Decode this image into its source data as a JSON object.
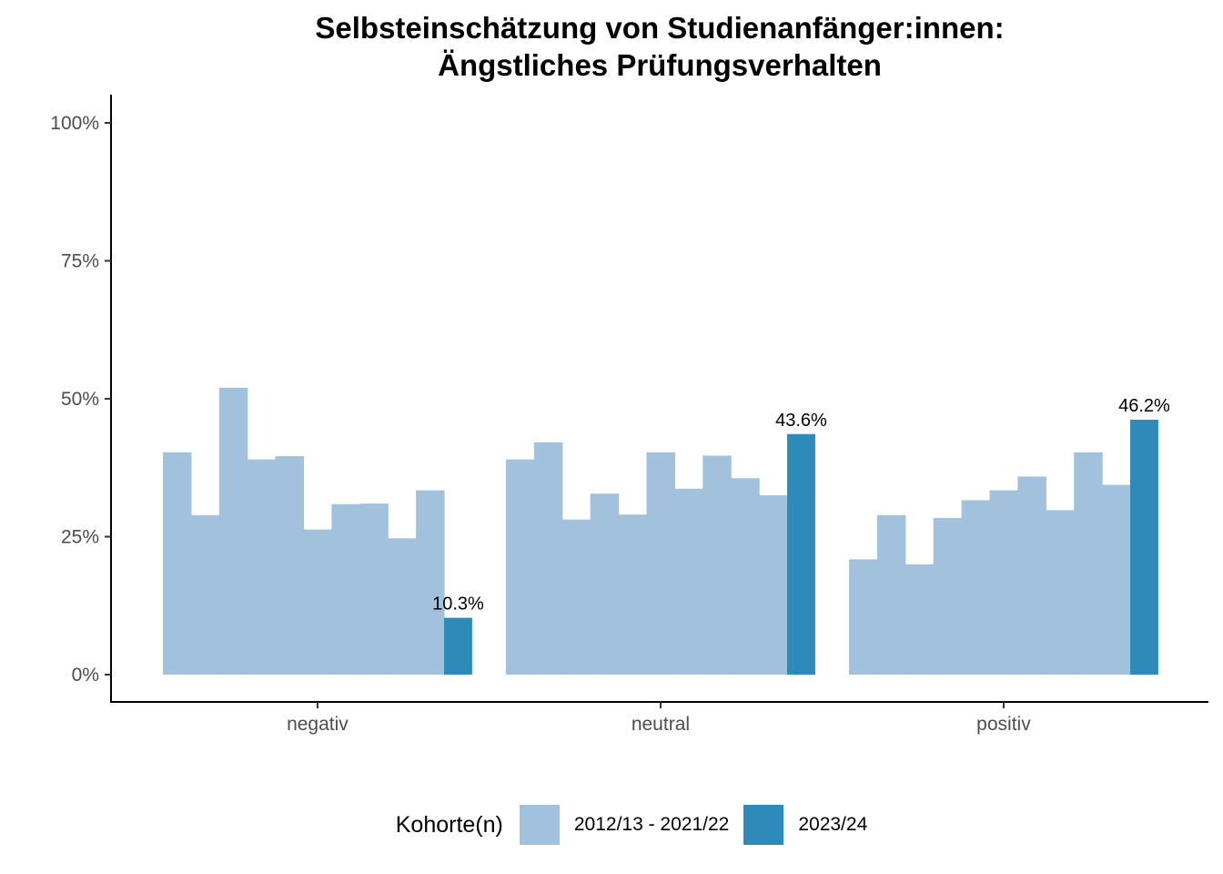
{
  "chart_data": {
    "type": "bar",
    "title": [
      "Selbsteinschätzung von Studienanfänger:innen:",
      "Ängstliches Prüfungsverhalten"
    ],
    "categories": [
      "negativ",
      "neutral",
      "positiv"
    ],
    "ylim": [
      0,
      1
    ],
    "yticks": [
      0,
      0.25,
      0.5,
      0.75,
      1
    ],
    "ytick_labels": [
      "0%",
      "25%",
      "50%",
      "75%",
      "100%"
    ],
    "legend_position": "bottom",
    "legend_title": "Kohorte(n)",
    "series": [
      {
        "name": "2012/13 - 2021/22",
        "color": "#a1c1dd",
        "values": [
          [
            0.403,
            0.289,
            0.52,
            0.39,
            0.396,
            0.263,
            0.309,
            0.31,
            0.247,
            0.334
          ],
          [
            0.39,
            0.421,
            0.281,
            0.328,
            0.29,
            0.403,
            0.337,
            0.397,
            0.356,
            0.325
          ],
          [
            0.209,
            0.289,
            0.2,
            0.284,
            0.316,
            0.334,
            0.359,
            0.298,
            0.403,
            0.344
          ]
        ]
      },
      {
        "name": "2023/24",
        "color": "#2e8ab8",
        "values": [
          0.103,
          0.436,
          0.462
        ],
        "labels": [
          "10.3%",
          "43.6%",
          "46.2%"
        ]
      }
    ]
  }
}
